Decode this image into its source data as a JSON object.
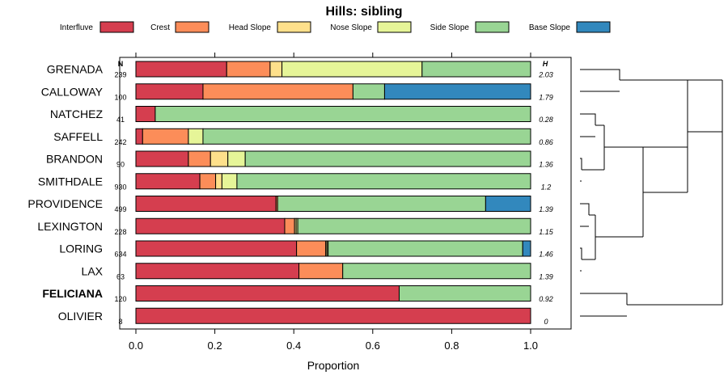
{
  "chart_data": {
    "type": "bar",
    "title": "Hills: sibling",
    "xlabel": "Proportion",
    "ylabel": "",
    "xlim": [
      0,
      1
    ],
    "xticks": [
      "0.0",
      "0.2",
      "0.4",
      "0.6",
      "0.8",
      "1.0"
    ],
    "n_header": "N",
    "h_header": "H",
    "legend": [
      {
        "name": "Interfluve",
        "color": "#D53E4F"
      },
      {
        "name": "Crest",
        "color": "#FC8D59"
      },
      {
        "name": "Head Slope",
        "color": "#FEE08B"
      },
      {
        "name": "Nose Slope",
        "color": "#E6F598"
      },
      {
        "name": "Side Slope",
        "color": "#99D594"
      },
      {
        "name": "Base Slope",
        "color": "#3288BD"
      }
    ],
    "rows": [
      {
        "label": "GRENADA",
        "n": "239",
        "h": "2.03",
        "bold": false,
        "values": [
          0.23,
          0.11,
          0.03,
          0.355,
          0.275,
          0.0
        ]
      },
      {
        "label": "CALLOWAY",
        "n": "100",
        "h": "1.79",
        "bold": false,
        "values": [
          0.17,
          0.38,
          0.0,
          0.0,
          0.08,
          0.37
        ]
      },
      {
        "label": "NATCHEZ",
        "n": "41",
        "h": "0.28",
        "bold": false,
        "values": [
          0.049,
          0.0,
          0.0,
          0.0,
          0.951,
          0.0
        ]
      },
      {
        "label": "SAFFELL",
        "n": "242",
        "h": "0.86",
        "bold": false,
        "values": [
          0.017,
          0.116,
          0.0,
          0.037,
          0.83,
          0.0
        ]
      },
      {
        "label": "BRANDON",
        "n": "90",
        "h": "1.36",
        "bold": false,
        "values": [
          0.133,
          0.056,
          0.044,
          0.044,
          0.723,
          0.0
        ]
      },
      {
        "label": "SMITHDALE",
        "n": "930",
        "h": "1.2",
        "bold": false,
        "values": [
          0.162,
          0.04,
          0.016,
          0.038,
          0.744,
          0.0
        ]
      },
      {
        "label": "PROVIDENCE",
        "n": "499",
        "h": "1.39",
        "bold": false,
        "values": [
          0.355,
          0.004,
          0.0,
          0.0,
          0.527,
          0.114
        ]
      },
      {
        "label": "LEXINGTON",
        "n": "228",
        "h": "1.15",
        "bold": false,
        "values": [
          0.377,
          0.025,
          0.004,
          0.004,
          0.59,
          0.0
        ]
      },
      {
        "label": "LORING",
        "n": "634",
        "h": "1.46",
        "bold": false,
        "values": [
          0.407,
          0.074,
          0.003,
          0.003,
          0.493,
          0.02
        ]
      },
      {
        "label": "LAX",
        "n": "63",
        "h": "1.39",
        "bold": false,
        "values": [
          0.413,
          0.111,
          0.0,
          0.0,
          0.476,
          0.0
        ]
      },
      {
        "label": "FELICIANA",
        "n": "120",
        "h": "0.92",
        "bold": true,
        "values": [
          0.667,
          0.0,
          0.0,
          0.0,
          0.333,
          0.0
        ]
      },
      {
        "label": "OLIVIER",
        "n": "8",
        "h": "0",
        "bold": false,
        "values": [
          1.0,
          0.0,
          0.0,
          0.0,
          0.0,
          0.0
        ]
      }
    ]
  }
}
